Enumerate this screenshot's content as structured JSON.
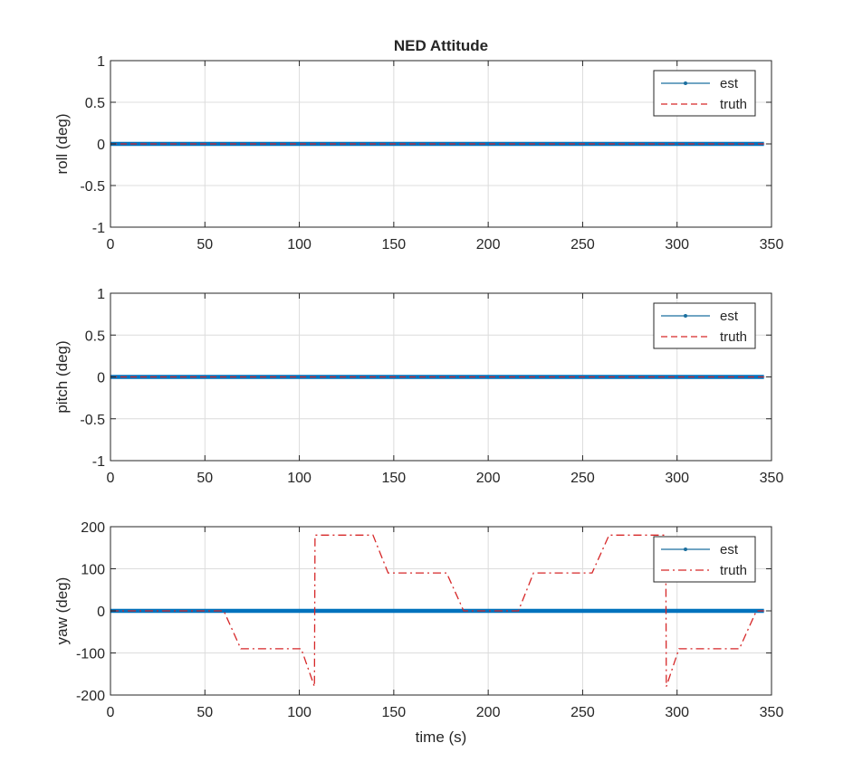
{
  "figure": {
    "title": "NED Attitude"
  },
  "colors": {
    "est": "#0072BD",
    "est_legend": "#1b6f9f",
    "truth": "#D62728",
    "axis": "#262626",
    "grid": "#dcdcdc"
  },
  "legend": {
    "est_label": "est",
    "truth_label": "truth",
    "placement": "top-right"
  },
  "chart_data": [
    {
      "type": "line",
      "title": "NED Attitude",
      "xlabel": "",
      "ylabel": "roll (deg)",
      "xlim": [
        0,
        350
      ],
      "ylim": [
        -1,
        1
      ],
      "xticks": [
        0,
        50,
        100,
        150,
        200,
        250,
        300,
        350
      ],
      "yticks": [
        -1,
        -0.5,
        0,
        0.5,
        1
      ],
      "grid": true,
      "legend_placement": "top-right",
      "truth_style": "dashed",
      "series": [
        {
          "name": "est",
          "x": [
            0,
            346
          ],
          "y": [
            0,
            0
          ]
        },
        {
          "name": "truth",
          "x": [
            0,
            346
          ],
          "y": [
            0,
            0
          ]
        }
      ]
    },
    {
      "type": "line",
      "title": "",
      "xlabel": "",
      "ylabel": "pitch (deg)",
      "xlim": [
        0,
        350
      ],
      "ylim": [
        -1,
        1
      ],
      "xticks": [
        0,
        50,
        100,
        150,
        200,
        250,
        300,
        350
      ],
      "yticks": [
        -1,
        -0.5,
        0,
        0.5,
        1
      ],
      "grid": true,
      "legend_placement": "top-right",
      "truth_style": "dashed",
      "series": [
        {
          "name": "est",
          "x": [
            0,
            346
          ],
          "y": [
            0,
            0
          ]
        },
        {
          "name": "truth",
          "x": [
            0,
            346
          ],
          "y": [
            0,
            0
          ]
        }
      ]
    },
    {
      "type": "line",
      "title": "",
      "xlabel": "time (s)",
      "ylabel": "yaw (deg)",
      "xlim": [
        0,
        350
      ],
      "ylim": [
        -200,
        200
      ],
      "xticks": [
        0,
        50,
        100,
        150,
        200,
        250,
        300,
        350
      ],
      "yticks": [
        -200,
        -100,
        0,
        100,
        200
      ],
      "grid": true,
      "legend_placement": "top-right",
      "truth_style": "dashdot",
      "series": [
        {
          "name": "est",
          "x": [
            0,
            346
          ],
          "y": [
            0,
            0
          ]
        },
        {
          "name": "truth",
          "x": [
            0,
            60,
            69,
            101,
            108,
            108.3,
            139,
            147,
            178,
            187,
            216,
            224,
            255,
            264,
            294,
            294.3,
            301,
            333,
            342,
            346
          ],
          "y": [
            0,
            0,
            -90,
            -90,
            -180,
            180,
            180,
            90,
            90,
            0,
            0,
            90,
            90,
            180,
            180,
            -180,
            -90,
            -90,
            0,
            0
          ]
        }
      ]
    }
  ]
}
